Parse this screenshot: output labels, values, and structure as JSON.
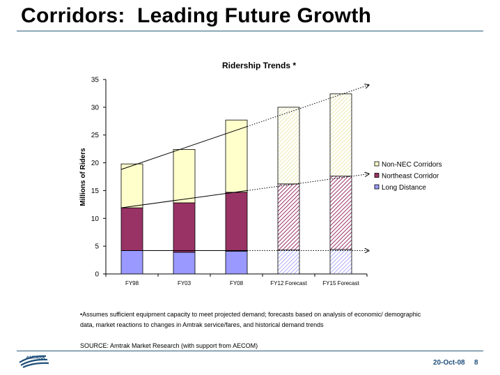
{
  "slide": {
    "title": "Corridors:  Leading Future Growth",
    "footnote": "•Assumes sufficient equipment capacity to meet projected demand; forecasts based on analysis of economic/ demographic data, market reactions to changes in Amtrak service/fares, and historical demand trends",
    "source": "SOURCE: Amtrak Market Research (with support from AECOM)",
    "logo_text": "AMTRAK",
    "date": "20-Oct-08",
    "page_number": "8"
  },
  "chart_data": {
    "type": "bar",
    "stacked": true,
    "title": "Ridership Trends *",
    "xlabel": "",
    "ylabel": "Millions of Riders",
    "ylim": [
      0,
      35
    ],
    "yticks": [
      0,
      5,
      10,
      15,
      20,
      25,
      30,
      35
    ],
    "categories": [
      "FY98",
      "FY03",
      "FY08",
      "FY12 Forecast",
      "FY15 Forecast"
    ],
    "forecast": [
      false,
      false,
      false,
      true,
      true
    ],
    "series": [
      {
        "name": "Long Distance",
        "color": "#9999ff",
        "values": [
          4.2,
          3.9,
          4.1,
          4.3,
          4.4
        ]
      },
      {
        "name": "Northeast Corridor",
        "color": "#993366",
        "values": [
          7.7,
          8.9,
          10.6,
          11.9,
          13.2
        ]
      },
      {
        "name": "Non-NEC Corridors",
        "color": "#ffffcc",
        "values": [
          7.9,
          9.6,
          13.0,
          13.8,
          14.8
        ]
      }
    ],
    "legend_position": "right",
    "grid": false,
    "trend_lines": [
      {
        "series": "Long Distance",
        "from": [
          "FY98",
          4.2
        ],
        "to": [
          "FY15 Forecast",
          4.2
        ],
        "style": "solid-then-dotted"
      },
      {
        "series": "Northeast Corridor",
        "from": [
          "FY98",
          11.9
        ],
        "to": [
          "FY15 Forecast",
          18.0
        ],
        "style": "solid-then-dotted"
      },
      {
        "series": "Non-NEC Corridors",
        "from": [
          "FY98",
          18.8
        ],
        "to": [
          "FY15 Forecast",
          34.0
        ],
        "style": "solid-then-dotted"
      }
    ]
  }
}
